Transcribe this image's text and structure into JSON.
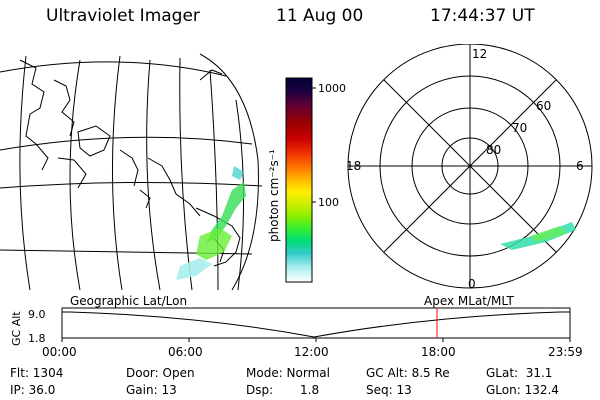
{
  "header": {
    "instrument": "Ultraviolet Imager",
    "date": "11 Aug 00",
    "time": "17:44:37 UT"
  },
  "colorbar": {
    "unit_label": "photon cm⁻²s⁻¹",
    "ticks": [
      "1000",
      "100"
    ],
    "colors": [
      "#000033",
      "#220044",
      "#660033",
      "#990000",
      "#cc0000",
      "#ee3300",
      "#ff7700",
      "#ffbb00",
      "#ffee00",
      "#ccee00",
      "#88ee00",
      "#33ee33",
      "#00dd77",
      "#33cccc",
      "#aaeeee",
      "#ffffff"
    ]
  },
  "polar_plot": {
    "mlt_labels": [
      "12",
      "18",
      "6",
      "0"
    ],
    "lat_labels": [
      "60",
      "70",
      "80"
    ]
  },
  "timeline": {
    "left_label": "Geographic Lat/Lon",
    "right_label": "Apex MLat/MLT",
    "axis_title": "GC Alt",
    "y_ticks": [
      "9.0",
      "1.8"
    ],
    "x_ticks": [
      "00:00",
      "06:00",
      "12:00",
      "18:00",
      "23:59"
    ],
    "marker_color": "#ff0000"
  },
  "status": {
    "flt": "Flt: 1304",
    "ip": "IP: 36.0",
    "door": "Door: Open",
    "gain": "Gain: 13",
    "mode": "Mode: Normal",
    "dsp_label": "Dsp:",
    "dsp_value": "1.8",
    "gc_alt": "GC Alt: 8.5 Re",
    "seq": "Seq: 13",
    "glat": "GLat:  31.1",
    "glon": "GLon: 132.4"
  }
}
